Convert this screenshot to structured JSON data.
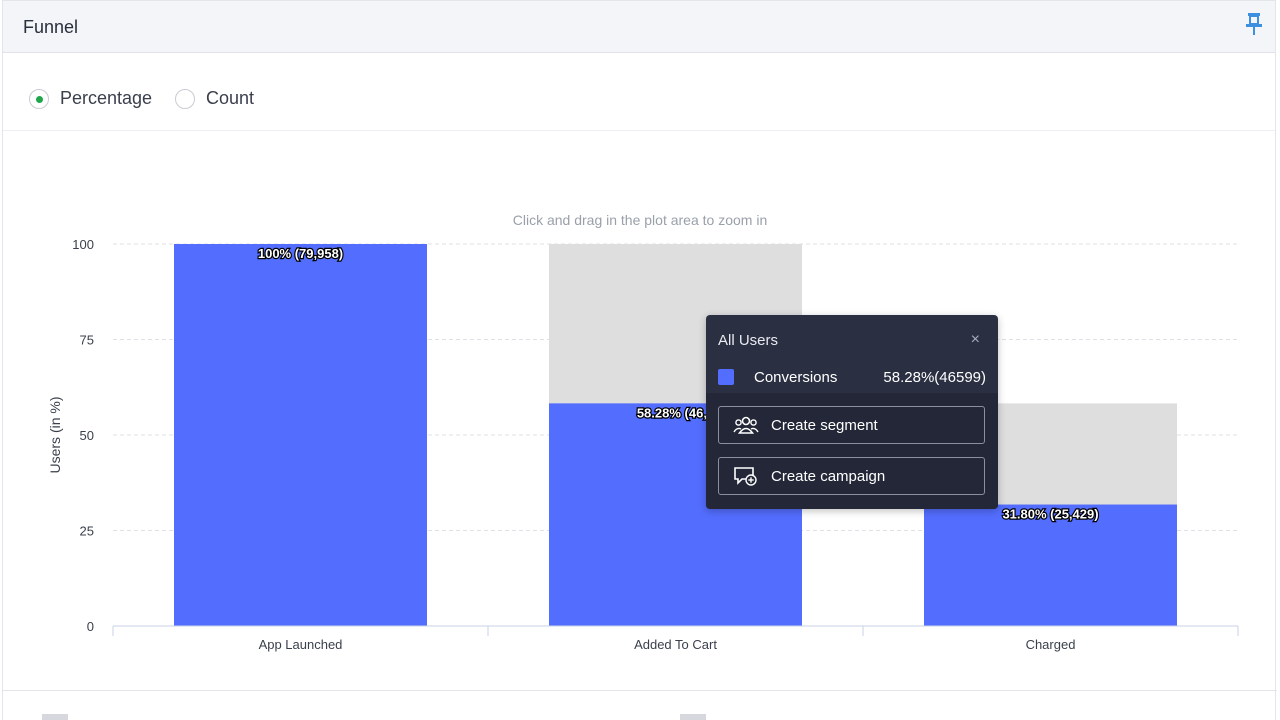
{
  "panel": {
    "title": "Funnel"
  },
  "options": [
    {
      "label": "Percentage",
      "selected": true
    },
    {
      "label": "Count",
      "selected": false
    }
  ],
  "hint": "Click and drag in the plot area to zoom in",
  "chart_data": {
    "type": "bar",
    "categories": [
      "App Launched",
      "Added To Cart",
      "Charged"
    ],
    "series": [
      {
        "values": [
          100,
          58.28,
          31.8
        ],
        "color": "#536dfe"
      }
    ],
    "background_values": [
      null,
      100,
      58.28
    ],
    "background_color": "#dedede",
    "data_labels": [
      "100% (79,958)",
      "58.28% (46,5",
      "31.80% (25,429)"
    ],
    "ylabel": "Users (in %)",
    "yticks": [
      0,
      25,
      50,
      75,
      100
    ],
    "ylim": [
      0,
      100
    ],
    "grid": true
  },
  "tooltip": {
    "title": "All Users",
    "close": "×",
    "series_name": "Conversions",
    "series_value": "58.28%(46599)",
    "buttons": [
      {
        "label": "Create segment",
        "icon": "users-group-icon"
      },
      {
        "label": "Create campaign",
        "icon": "chat-plus-icon"
      }
    ]
  },
  "pin_icon": "pin-icon"
}
